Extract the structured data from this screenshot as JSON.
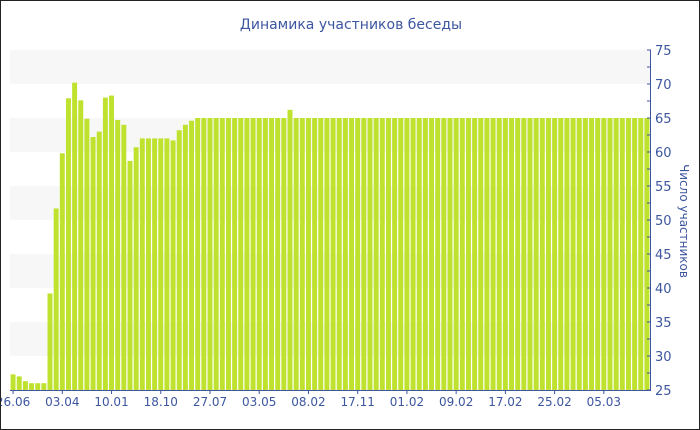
{
  "chart_data": {
    "type": "bar",
    "title": "Динамика участников беседы",
    "ylabel": "Число участников",
    "xlabel": "",
    "ylim": [
      25,
      75
    ],
    "yticks": [
      25,
      30,
      35,
      40,
      45,
      50,
      55,
      60,
      65,
      70,
      75
    ],
    "y_axis_side": "right",
    "grid": "alternating horizontal bands",
    "bar_color": "#bfe22e",
    "text_color": "#3d56a0",
    "band_color": "#f7f7f7",
    "xtick_every": 8,
    "xtick_labels": [
      "26.06",
      "03.04",
      "10.01",
      "18.10",
      "27.07",
      "03.05",
      "08.02",
      "17.11",
      "01.02",
      "09.02",
      "17.02",
      "25.02",
      "05.03"
    ],
    "values": [
      27.3,
      27,
      26.3,
      26,
      26,
      26,
      39.2,
      51.7,
      59.8,
      67.9,
      70.2,
      67.6,
      64.9,
      62.2,
      63,
      68,
      68.3,
      64.7,
      64,
      58.7,
      60.7,
      62,
      62,
      62,
      62,
      62,
      61.7,
      63.2,
      64,
      64.6,
      65,
      65,
      65,
      65,
      65,
      65,
      65,
      65,
      65,
      65,
      65,
      65,
      65,
      65,
      65,
      66.2,
      65,
      65,
      65,
      65,
      65,
      65,
      65,
      65,
      65,
      65,
      65,
      65,
      65,
      65,
      65,
      65,
      65,
      65,
      65,
      65,
      65,
      65,
      65,
      65,
      65,
      65,
      65,
      65,
      65,
      65,
      65,
      65,
      65,
      65,
      65,
      65,
      65,
      65,
      65,
      65,
      65,
      65,
      65,
      65,
      65,
      65,
      65,
      65,
      65,
      65,
      65,
      65,
      65,
      65,
      65,
      65,
      65,
      65
    ]
  }
}
